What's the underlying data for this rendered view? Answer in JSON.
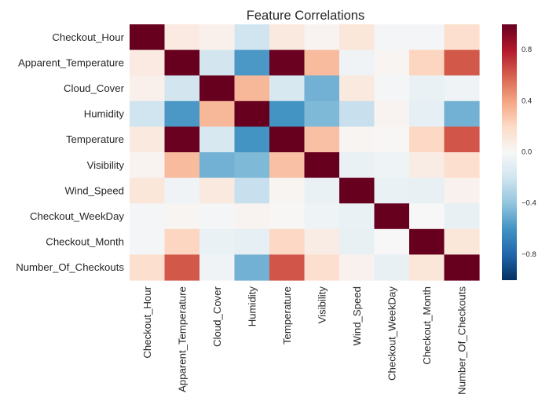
{
  "chart_data": {
    "type": "heatmap",
    "title": "Feature Correlations",
    "xlabel": "",
    "ylabel": "",
    "rows": [
      "Checkout_Hour",
      "Apparent_Temperature",
      "Cloud_Cover",
      "Humidity",
      "Temperature",
      "Visibility",
      "Wind_Speed",
      "Checkout_WeekDay",
      "Checkout_Month",
      "Number_Of_Checkouts"
    ],
    "columns": [
      "Checkout_Hour",
      "Apparent_Temperature",
      "Cloud_Cover",
      "Humidity",
      "Temperature",
      "Visibility",
      "Wind_Speed",
      "Checkout_WeekDay",
      "Checkout_Month",
      "Number_Of_Checkouts"
    ],
    "values": [
      [
        1.0,
        0.09,
        0.05,
        -0.2,
        0.1,
        0.03,
        0.12,
        -0.02,
        -0.02,
        0.17
      ],
      [
        0.09,
        1.0,
        -0.19,
        -0.58,
        0.99,
        0.32,
        -0.04,
        0.02,
        0.22,
        0.62
      ],
      [
        0.05,
        -0.19,
        1.0,
        0.33,
        -0.17,
        -0.48,
        0.1,
        -0.02,
        -0.07,
        -0.04
      ],
      [
        -0.2,
        -0.58,
        0.33,
        1.0,
        -0.6,
        -0.45,
        -0.23,
        0.03,
        -0.09,
        -0.48
      ],
      [
        0.1,
        0.99,
        -0.17,
        -0.6,
        1.0,
        0.3,
        0.02,
        0.01,
        0.21,
        0.63
      ],
      [
        0.03,
        0.32,
        -0.48,
        -0.45,
        0.3,
        1.0,
        -0.07,
        -0.05,
        0.08,
        0.17
      ],
      [
        0.12,
        -0.04,
        0.1,
        -0.23,
        0.02,
        -0.07,
        1.0,
        -0.07,
        -0.08,
        0.04
      ],
      [
        -0.02,
        0.02,
        -0.02,
        0.03,
        0.01,
        -0.05,
        -0.07,
        1.0,
        0.0,
        -0.08
      ],
      [
        -0.02,
        0.22,
        -0.07,
        -0.09,
        0.21,
        0.08,
        -0.08,
        0.0,
        1.0,
        0.12
      ],
      [
        0.17,
        0.62,
        -0.04,
        -0.48,
        0.63,
        0.17,
        0.04,
        -0.08,
        0.12,
        1.0
      ]
    ],
    "colorbar": {
      "min": -1.0,
      "max": 1.0,
      "ticks": [
        0.8,
        0.4,
        0.0,
        -0.4,
        -0.8
      ],
      "tick_labels": [
        "0.8",
        "0.4",
        "0.0",
        "−0.4",
        "−0.8"
      ],
      "colormap": "RdBu_r",
      "colors": [
        "#053061",
        "#2166ac",
        "#4393c3",
        "#92c5de",
        "#d1e5f0",
        "#f7f7f7",
        "#fddbc7",
        "#f4a582",
        "#d6604d",
        "#b2182b",
        "#67001f"
      ]
    },
    "legend": "colorbar-right",
    "grid": false
  }
}
